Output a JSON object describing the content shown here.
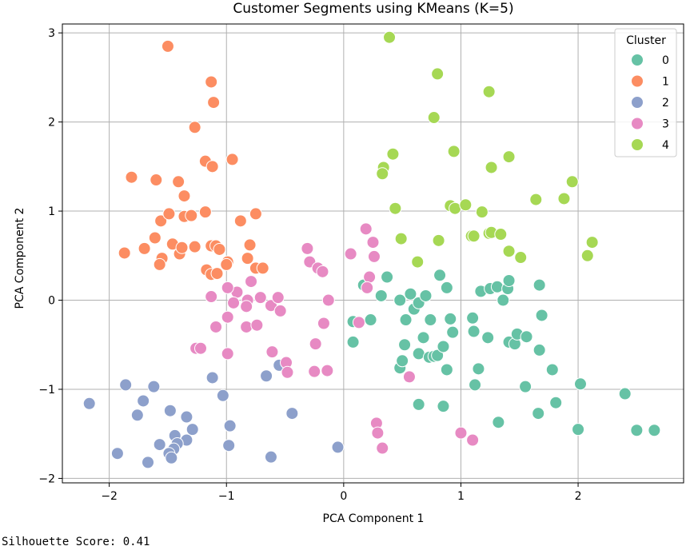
{
  "chart_data": {
    "type": "scatter",
    "title": "Customer Segments using KMeans (K=5)",
    "xlabel": "PCA Component 1",
    "ylabel": "PCA Component 2",
    "xlim": [
      -2.4,
      2.9
    ],
    "ylim": [
      -2.05,
      3.1
    ],
    "xticks": [
      -2,
      -1,
      0,
      1,
      2
    ],
    "yticks": [
      -2,
      -1,
      0,
      1,
      2,
      3
    ],
    "xtick_labels": [
      "−2",
      "−1",
      "0",
      "1",
      "2"
    ],
    "ytick_labels": [
      "−2",
      "−1",
      "0",
      "1",
      "2",
      "3"
    ],
    "grid": true,
    "legend": {
      "title": "Cluster",
      "placement": "top-right"
    },
    "series": [
      {
        "name": "0",
        "color": "#66c2a5",
        "points": [
          [
            0.08,
            -0.24
          ],
          [
            0.08,
            -0.47
          ],
          [
            0.17,
            0.17
          ],
          [
            0.32,
            0.05
          ],
          [
            0.37,
            0.26
          ],
          [
            0.48,
            0.0
          ],
          [
            0.53,
            -0.22
          ],
          [
            0.57,
            0.07
          ],
          [
            0.6,
            -0.1
          ],
          [
            0.64,
            -0.03
          ],
          [
            0.68,
            -0.42
          ],
          [
            0.7,
            0.05
          ],
          [
            0.74,
            -0.22
          ],
          [
            0.52,
            -0.5
          ],
          [
            0.48,
            -0.76
          ],
          [
            0.5,
            -0.68
          ],
          [
            0.64,
            -0.6
          ],
          [
            0.73,
            -0.64
          ],
          [
            0.77,
            -0.63
          ],
          [
            0.8,
            -0.62
          ],
          [
            0.85,
            -0.52
          ],
          [
            0.88,
            -0.78
          ],
          [
            0.82,
            0.28
          ],
          [
            0.88,
            0.14
          ],
          [
            0.91,
            -0.21
          ],
          [
            0.93,
            -0.36
          ],
          [
            1.1,
            -0.2
          ],
          [
            1.11,
            -0.35
          ],
          [
            1.12,
            -0.95
          ],
          [
            1.15,
            -0.77
          ],
          [
            1.17,
            0.1
          ],
          [
            1.25,
            0.13
          ],
          [
            1.23,
            -0.42
          ],
          [
            1.31,
            0.15
          ],
          [
            1.32,
            -1.37
          ],
          [
            1.36,
            0.0
          ],
          [
            1.4,
            0.13
          ],
          [
            1.41,
            0.22
          ],
          [
            1.41,
            -0.47
          ],
          [
            1.46,
            -0.49
          ],
          [
            1.48,
            -0.38
          ],
          [
            1.55,
            -0.97
          ],
          [
            1.56,
            -0.41
          ],
          [
            1.66,
            -1.27
          ],
          [
            1.67,
            -0.56
          ],
          [
            1.67,
            0.17
          ],
          [
            1.69,
            -0.17
          ],
          [
            1.78,
            -0.78
          ],
          [
            1.81,
            -1.15
          ],
          [
            2.02,
            -0.94
          ],
          [
            2.0,
            -1.45
          ],
          [
            2.4,
            -1.05
          ],
          [
            2.5,
            -1.46
          ],
          [
            2.65,
            -1.46
          ],
          [
            0.64,
            -1.17
          ],
          [
            0.85,
            -1.19
          ],
          [
            0.23,
            -0.22
          ]
        ]
      },
      {
        "name": "1",
        "color": "#fc8d62",
        "points": [
          [
            -1.5,
            2.85
          ],
          [
            -1.13,
            2.45
          ],
          [
            -1.11,
            2.22
          ],
          [
            -1.27,
            1.94
          ],
          [
            -1.18,
            1.56
          ],
          [
            -0.95,
            1.58
          ],
          [
            -1.12,
            1.5
          ],
          [
            -1.81,
            1.38
          ],
          [
            -1.6,
            1.35
          ],
          [
            -1.41,
            1.33
          ],
          [
            -1.36,
            1.17
          ],
          [
            -1.56,
            0.89
          ],
          [
            -1.49,
            0.97
          ],
          [
            -1.36,
            0.94
          ],
          [
            -1.3,
            0.95
          ],
          [
            -1.18,
            0.99
          ],
          [
            -0.88,
            0.89
          ],
          [
            -0.75,
            0.97
          ],
          [
            -1.61,
            0.7
          ],
          [
            -1.46,
            0.63
          ],
          [
            -1.4,
            0.52
          ],
          [
            -1.38,
            0.59
          ],
          [
            -1.27,
            0.6
          ],
          [
            -1.13,
            0.61
          ],
          [
            -1.09,
            0.61
          ],
          [
            -1.06,
            0.57
          ],
          [
            -0.99,
            0.43
          ],
          [
            -0.8,
            0.62
          ],
          [
            -1.7,
            0.58
          ],
          [
            -1.87,
            0.53
          ],
          [
            -1.55,
            0.47
          ],
          [
            -1.57,
            0.4
          ],
          [
            -1.17,
            0.34
          ],
          [
            -1.13,
            0.29
          ],
          [
            -0.82,
            0.47
          ],
          [
            -0.75,
            0.36
          ],
          [
            -0.69,
            0.36
          ],
          [
            -1.08,
            0.3
          ],
          [
            -1.0,
            0.4
          ]
        ]
      },
      {
        "name": "2",
        "color": "#8da0cb",
        "points": [
          [
            -2.17,
            -1.16
          ],
          [
            -1.86,
            -0.95
          ],
          [
            -1.62,
            -0.97
          ],
          [
            -1.71,
            -1.13
          ],
          [
            -1.76,
            -1.29
          ],
          [
            -1.48,
            -1.24
          ],
          [
            -1.34,
            -1.31
          ],
          [
            -1.29,
            -1.45
          ],
          [
            -1.34,
            -1.57
          ],
          [
            -1.44,
            -1.52
          ],
          [
            -1.57,
            -1.62
          ],
          [
            -1.42,
            -1.61
          ],
          [
            -1.45,
            -1.67
          ],
          [
            -1.49,
            -1.72
          ],
          [
            -1.47,
            -1.77
          ],
          [
            -1.67,
            -1.82
          ],
          [
            -1.93,
            -1.72
          ],
          [
            -1.12,
            -0.87
          ],
          [
            -1.03,
            -1.07
          ],
          [
            -0.97,
            -1.41
          ],
          [
            -0.98,
            -1.63
          ],
          [
            -0.66,
            -0.85
          ],
          [
            -0.55,
            -0.73
          ],
          [
            -0.44,
            -1.27
          ],
          [
            -0.62,
            -1.76
          ],
          [
            -0.05,
            -1.65
          ]
        ]
      },
      {
        "name": "3",
        "color": "#e78ac3",
        "points": [
          [
            -0.31,
            0.58
          ],
          [
            -0.29,
            0.43
          ],
          [
            -0.22,
            0.36
          ],
          [
            -0.18,
            0.32
          ],
          [
            -0.79,
            0.21
          ],
          [
            -0.82,
            0.0
          ],
          [
            -0.83,
            -0.07
          ],
          [
            -0.71,
            0.03
          ],
          [
            -0.62,
            -0.06
          ],
          [
            -0.56,
            0.03
          ],
          [
            -0.54,
            -0.12
          ],
          [
            -0.91,
            0.09
          ],
          [
            -0.94,
            -0.03
          ],
          [
            -0.99,
            0.14
          ],
          [
            -0.99,
            -0.19
          ],
          [
            -1.13,
            0.04
          ],
          [
            -1.09,
            -0.3
          ],
          [
            -0.83,
            -0.3
          ],
          [
            -0.74,
            -0.28
          ],
          [
            -0.61,
            -0.58
          ],
          [
            -0.49,
            -0.7
          ],
          [
            -0.48,
            -0.81
          ],
          [
            -1.26,
            -0.54
          ],
          [
            -1.22,
            -0.54
          ],
          [
            -0.99,
            -0.6
          ],
          [
            -0.24,
            -0.49
          ],
          [
            -0.25,
            -0.8
          ],
          [
            -0.14,
            -0.79
          ],
          [
            -0.17,
            -0.26
          ],
          [
            -0.13,
            0.0
          ],
          [
            0.06,
            0.52
          ],
          [
            0.19,
            0.8
          ],
          [
            0.25,
            0.65
          ],
          [
            0.26,
            0.49
          ],
          [
            0.22,
            0.26
          ],
          [
            0.2,
            0.14
          ],
          [
            0.13,
            -0.25
          ],
          [
            0.28,
            -1.38
          ],
          [
            0.29,
            -1.49
          ],
          [
            0.33,
            -1.66
          ],
          [
            0.56,
            -0.86
          ],
          [
            1.0,
            -1.49
          ],
          [
            1.1,
            -1.57
          ]
        ]
      },
      {
        "name": "4",
        "color": "#a6d854",
        "points": [
          [
            0.39,
            2.95
          ],
          [
            0.8,
            2.54
          ],
          [
            1.24,
            2.34
          ],
          [
            0.77,
            2.05
          ],
          [
            0.94,
            1.67
          ],
          [
            1.41,
            1.61
          ],
          [
            0.42,
            1.64
          ],
          [
            0.34,
            1.49
          ],
          [
            0.33,
            1.42
          ],
          [
            1.26,
            1.49
          ],
          [
            1.64,
            1.13
          ],
          [
            1.95,
            1.33
          ],
          [
            1.88,
            1.14
          ],
          [
            0.44,
            1.03
          ],
          [
            0.91,
            1.06
          ],
          [
            0.95,
            1.03
          ],
          [
            1.04,
            1.07
          ],
          [
            1.18,
            0.99
          ],
          [
            0.49,
            0.69
          ],
          [
            0.81,
            0.67
          ],
          [
            1.09,
            0.72
          ],
          [
            1.11,
            0.72
          ],
          [
            1.24,
            0.75
          ],
          [
            1.26,
            0.76
          ],
          [
            1.34,
            0.74
          ],
          [
            1.41,
            0.55
          ],
          [
            1.51,
            0.48
          ],
          [
            2.12,
            0.65
          ],
          [
            2.08,
            0.5
          ],
          [
            0.63,
            0.43
          ]
        ]
      }
    ]
  },
  "footer": {
    "label": "Silhouette Score:",
    "value": "0.41"
  }
}
